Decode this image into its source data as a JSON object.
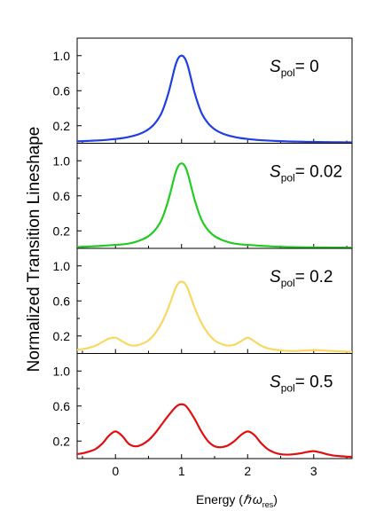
{
  "chart_data": {
    "type": "line",
    "ylabel": "Normalized Transition Lineshape",
    "xlabel": {
      "main": "Energy (",
      "hbar": "ℏ",
      "omega": "ω",
      "sub": "res",
      "close": ")"
    },
    "xlim": [
      -0.58,
      3.58
    ],
    "ylim": [
      0,
      1.2
    ],
    "xticks": [
      "0",
      "1",
      "2",
      "3"
    ],
    "yticks": [
      "0.2",
      "0.6",
      "1.0"
    ],
    "x": [
      -0.6,
      -0.5,
      -0.4,
      -0.3,
      -0.2,
      -0.1,
      0.0,
      0.1,
      0.2,
      0.3,
      0.4,
      0.5,
      0.6,
      0.7,
      0.8,
      0.9,
      0.95,
      1.0,
      1.05,
      1.1,
      1.2,
      1.3,
      1.4,
      1.5,
      1.6,
      1.7,
      1.8,
      1.9,
      2.0,
      2.1,
      2.2,
      2.3,
      2.4,
      2.5,
      2.6,
      2.7,
      2.8,
      2.9,
      3.0,
      3.1,
      3.2,
      3.3,
      3.4,
      3.5,
      3.6
    ],
    "panels": [
      {
        "label": {
          "s": "S",
          "sub": "pol",
          "value": "= 0"
        },
        "color": "#1f3fe0",
        "values": [
          0.021,
          0.024,
          0.027,
          0.031,
          0.035,
          0.041,
          0.049,
          0.058,
          0.072,
          0.09,
          0.118,
          0.16,
          0.23,
          0.35,
          0.57,
          0.87,
          0.97,
          1.0,
          0.97,
          0.87,
          0.57,
          0.35,
          0.23,
          0.16,
          0.118,
          0.09,
          0.072,
          0.058,
          0.049,
          0.041,
          0.035,
          0.031,
          0.027,
          0.024,
          0.021,
          0.019,
          0.018,
          0.016,
          0.015,
          0.014,
          0.013,
          0.012,
          0.011,
          0.01,
          0.01
        ]
      },
      {
        "label": {
          "s": "S",
          "sub": "pol",
          "value": "= 0.02"
        },
        "color": "#22cc22",
        "values": [
          0.015,
          0.018,
          0.021,
          0.025,
          0.029,
          0.035,
          0.04,
          0.045,
          0.055,
          0.073,
          0.1,
          0.14,
          0.21,
          0.33,
          0.55,
          0.84,
          0.94,
          0.97,
          0.94,
          0.84,
          0.55,
          0.33,
          0.21,
          0.14,
          0.1,
          0.073,
          0.055,
          0.045,
          0.04,
          0.035,
          0.029,
          0.025,
          0.021,
          0.018,
          0.016,
          0.014,
          0.013,
          0.012,
          0.011,
          0.01,
          0.01,
          0.009,
          0.009,
          0.008,
          0.008
        ]
      },
      {
        "label": {
          "s": "S",
          "sub": "pol",
          "value": "= 0.2"
        },
        "color": "#f8d860",
        "values": [
          0.04,
          0.05,
          0.065,
          0.09,
          0.13,
          0.17,
          0.18,
          0.14,
          0.1,
          0.09,
          0.11,
          0.15,
          0.23,
          0.35,
          0.52,
          0.73,
          0.8,
          0.82,
          0.8,
          0.73,
          0.52,
          0.35,
          0.23,
          0.15,
          0.11,
          0.09,
          0.1,
          0.14,
          0.18,
          0.14,
          0.09,
          0.06,
          0.045,
          0.035,
          0.03,
          0.028,
          0.03,
          0.035,
          0.038,
          0.036,
          0.032,
          0.028,
          0.024,
          0.02,
          0.018
        ]
      },
      {
        "label": {
          "s": "S",
          "sub": "pol",
          "value": "= 0.5"
        },
        "color": "#e01010",
        "values": [
          0.05,
          0.06,
          0.08,
          0.11,
          0.17,
          0.26,
          0.31,
          0.26,
          0.17,
          0.14,
          0.16,
          0.21,
          0.29,
          0.39,
          0.49,
          0.58,
          0.61,
          0.62,
          0.61,
          0.57,
          0.45,
          0.31,
          0.2,
          0.14,
          0.13,
          0.15,
          0.2,
          0.27,
          0.31,
          0.27,
          0.18,
          0.11,
          0.07,
          0.05,
          0.045,
          0.05,
          0.06,
          0.075,
          0.085,
          0.07,
          0.05,
          0.035,
          0.028,
          0.022,
          0.02
        ]
      }
    ]
  }
}
